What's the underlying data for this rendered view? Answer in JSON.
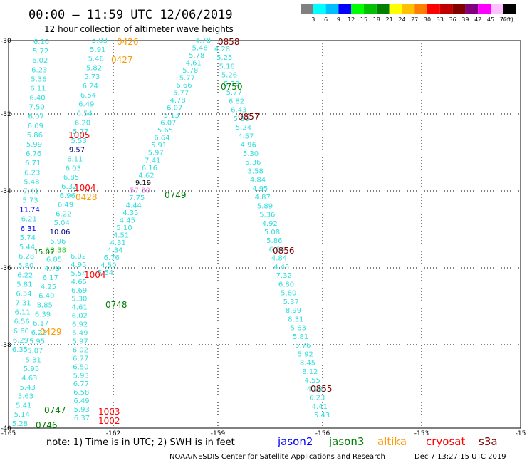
{
  "header": {
    "title": "00:00 – 11:59 UTC 12/06/2019",
    "subtitle": "12 hour collection of altimeter wave heights"
  },
  "legend": {
    "colors": [
      "#808080",
      "#00ffff",
      "#00bfff",
      "#0000ff",
      "#00ff00",
      "#00c000",
      "#008000",
      "#ffff00",
      "#ffc000",
      "#ff8000",
      "#ff0000",
      "#c00000",
      "#800000",
      "#800080",
      "#ff00ff",
      "#ffc0ff",
      "#000000"
    ],
    "ticks": [
      "3",
      "6",
      "9",
      "12",
      "15",
      "18",
      "21",
      "24",
      "27",
      "30",
      "33",
      "36",
      "39",
      "42",
      "45",
      "70",
      "(ft)"
    ]
  },
  "axes": {
    "lon_ticks": [
      "-165",
      "-162",
      "-159",
      "-156",
      "-153",
      "-15"
    ],
    "lat_ticks": [
      "-30",
      "-32",
      "-34",
      "-36",
      "-38",
      "-40"
    ]
  },
  "tracks": [
    {
      "id": "track-a",
      "values": [
        "6.16",
        "5.72",
        "6.02",
        "6.23",
        "5.36",
        "6.11",
        "6.40",
        "7.50",
        "6.07",
        "6.09",
        "5.86",
        "5.99",
        "6.76",
        "6.71",
        "6.23",
        "5.48",
        "7.41",
        "5.73",
        "11.74",
        "6.21",
        "6.31",
        "5.74",
        "5.44",
        "6.28",
        "5.80",
        "6.22",
        "5.81",
        "6.54",
        "7.31",
        "6.11",
        "6.56",
        "6.60",
        "6.29",
        "6.35"
      ],
      "colors": {
        "18": "#0000ff",
        "20": "#0000ff"
      }
    },
    {
      "id": "track-b",
      "values": [
        "5.03",
        "5.91",
        "5.46",
        "5.82",
        "5.73",
        "6.24",
        "6.54",
        "6.49",
        "6.54",
        "6.20",
        "5.77",
        "5.53",
        "9.57",
        "6.11",
        "6.03",
        "6.85",
        "6.32",
        "6.96",
        "6.49",
        "6.22",
        "5.04",
        "10.06",
        "6.96",
        "13.38",
        "6.85",
        "4.79",
        "6.17",
        "4.25",
        "6.40",
        "8.85",
        "6.39",
        "6.17",
        "6.22",
        "5.95",
        "5.07",
        "5.31",
        "5.95",
        "4.63",
        "5.43",
        "5.63",
        "5.41",
        "5.14",
        "5.28"
      ],
      "colors": {
        "12": "#000080",
        "21": "#000080",
        "23": "#33cc33"
      }
    },
    {
      "id": "track-c",
      "values": [
        "6.02",
        "4.95",
        "5.54",
        "4.65",
        "6.69",
        "5.30",
        "4.61",
        "6.02",
        "6.92",
        "5.49",
        "5.97",
        "6.02",
        "6.77",
        "6.50",
        "5.93",
        "6.77",
        "6.58",
        "6.49",
        "5.93",
        "6.37"
      ]
    },
    {
      "id": "track-d",
      "values": [
        "4.78",
        "5.46",
        "5.78",
        "4.61",
        "5.78",
        "5.77",
        "6.66",
        "5.77",
        "4.78",
        "6.07",
        "5.13",
        "6.07",
        "5.65",
        "6.64",
        "5.91",
        "5.97",
        "7.41",
        "6.16",
        "4.62",
        "9.19",
        "57.80",
        "7.75",
        "4.44",
        "4.35",
        "4.45",
        "5.10",
        "4.51",
        "4.31",
        "4.34",
        "6.76",
        "4.50",
        "5.54"
      ],
      "colors": {
        "19": "#000000",
        "20": "#ee88ee"
      }
    },
    {
      "id": "track-e",
      "values": [
        "4.28",
        "5.25",
        "5.18",
        "5.26",
        "5.78",
        "5.77",
        "6.82",
        "6.43",
        "5.36",
        "5.24",
        "4.57",
        "4.96",
        "5.30",
        "5.36",
        "3.58",
        "4.84",
        "4.95",
        "4.87",
        "5.89",
        "5.36",
        "4.92",
        "5.08",
        "5.86",
        "6.64",
        "4.84",
        "4.45",
        "7.32",
        "6.80",
        "5.80",
        "5.37",
        "8.99",
        "8.31",
        "5.63",
        "5.81",
        "5.76",
        "5.92",
        "8.45",
        "8.12",
        "4.55",
        "4.18",
        "6.23",
        "4.41",
        "5.43"
      ]
    },
    {
      "id": "track-f",
      "values": [
        "15.07"
      ],
      "colors": {
        "0": "#008000"
      }
    }
  ],
  "time_labels": [
    {
      "text": "0426",
      "color": "#ff9900"
    },
    {
      "text": "0427",
      "color": "#ff9900"
    },
    {
      "text": "0428",
      "color": "#ff9900"
    },
    {
      "text": "0429",
      "color": "#ff9900"
    },
    {
      "text": "1005",
      "color": "#ff0000"
    },
    {
      "text": "1004",
      "color": "#ff0000"
    },
    {
      "text": "1004",
      "color": "#ff0000"
    },
    {
      "text": "1003",
      "color": "#ff0000"
    },
    {
      "text": "1002",
      "color": "#ff0000"
    },
    {
      "text": "0858",
      "color": "#800000"
    },
    {
      "text": "0857",
      "color": "#800000"
    },
    {
      "text": "0856",
      "color": "#800000"
    },
    {
      "text": "0855",
      "color": "#800000"
    },
    {
      "text": "0750",
      "color": "#008000"
    },
    {
      "text": "0749",
      "color": "#008000"
    },
    {
      "text": "0748",
      "color": "#008000"
    },
    {
      "text": "0747",
      "color": "#008000"
    },
    {
      "text": "0746",
      "color": "#008000"
    }
  ],
  "footer": {
    "note": "note:  1) Time is in UTC;  2) SWH is in feet",
    "satellites": [
      {
        "name": "jason2",
        "color": "#0000ff"
      },
      {
        "name": "jason3",
        "color": "#008000"
      },
      {
        "name": "altika",
        "color": "#ff9900"
      },
      {
        "name": "cryosat",
        "color": "#ff0000"
      },
      {
        "name": "s3a",
        "color": "#800000"
      }
    ],
    "credit": "NOAA/NESDIS Center for Satellite Applications and Research",
    "timestamp": "Dec  7 13:27:15 UTC 2019"
  },
  "track_color": "#33dddd"
}
